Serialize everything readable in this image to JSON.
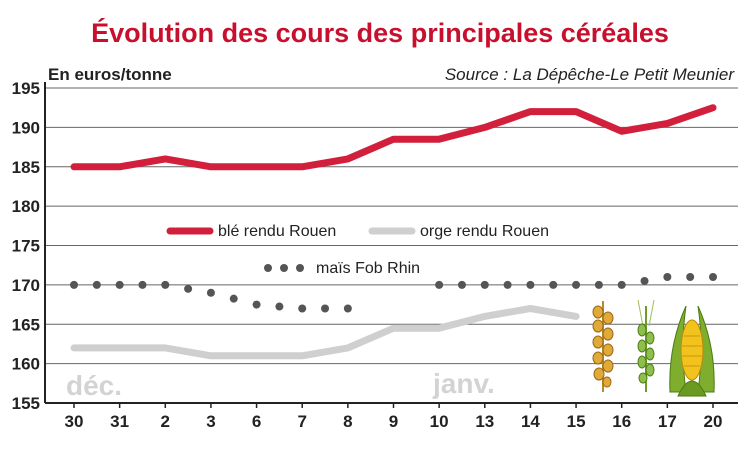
{
  "chart_data": {
    "type": "line",
    "title": "Évolution des cours des principales céréales",
    "unit_label": "En euros/tonne",
    "source": "Source : La Dépêche-Le Petit Meunier",
    "categories": [
      "30",
      "31",
      "2",
      "3",
      "6",
      "7",
      "8",
      "9",
      "10",
      "13",
      "14",
      "15",
      "16",
      "17",
      "20"
    ],
    "period_labels": [
      "déc.",
      "janv."
    ],
    "ylim": [
      155,
      195
    ],
    "yticks": [
      155,
      160,
      165,
      170,
      175,
      180,
      185,
      190,
      195
    ],
    "grid": true,
    "legend_position": "middle",
    "series": [
      {
        "name": "blé rendu Rouen",
        "color": "#d21f3c",
        "style": "solid",
        "values": [
          185,
          185,
          186,
          185,
          185,
          185,
          186,
          188.5,
          188.5,
          190,
          192,
          192,
          189.5,
          190.5,
          192.5
        ]
      },
      {
        "name": "orge rendu Rouen",
        "color": "#cfcfcf",
        "style": "solid",
        "values": [
          162,
          162,
          162,
          161,
          161,
          161,
          162,
          164.5,
          164.5,
          166,
          167,
          166,
          null,
          null,
          null
        ]
      },
      {
        "name": "maïs Fob Rhin",
        "color": "#555555",
        "style": "dotted",
        "values": [
          170,
          170,
          170,
          169,
          167.5,
          167,
          167,
          null,
          170,
          170,
          170,
          170,
          170,
          171,
          171
        ]
      }
    ]
  }
}
